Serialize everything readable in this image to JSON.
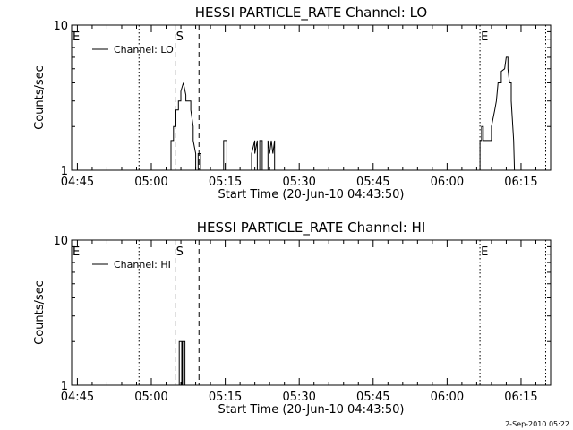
{
  "footer_timestamp": "2-Sep-2010 05:22",
  "chart_data": [
    {
      "type": "line",
      "title": "HESSI PARTICLE_RATE Channel: LO",
      "xlabel": "Start Time (20-Jun-10 04:43:50)",
      "ylabel": "Counts/sec",
      "y_scale": "log",
      "ylim": [
        1,
        10
      ],
      "y_tick_labels": [
        "1",
        "10"
      ],
      "xlim": [
        "04:43:50",
        "06:21:00"
      ],
      "x_tick_labels": [
        "04:45",
        "05:00",
        "05:15",
        "05:30",
        "05:45",
        "06:00",
        "06:15"
      ],
      "legend": {
        "entry": "Channel: LO",
        "position": "top-left"
      },
      "markers": [
        {
          "label": "E",
          "time": "04:43:50",
          "style": "dotted"
        },
        {
          "label": "",
          "time": "04:57:30",
          "style": "dotted"
        },
        {
          "label": "S",
          "time": "05:04:50",
          "style": "dashed"
        },
        {
          "label": "",
          "time": "05:09:40",
          "style": "dashed"
        },
        {
          "label": "E",
          "time": "06:06:40",
          "style": "dotted"
        },
        {
          "label": "",
          "time": "06:20:00",
          "style": "dotted"
        }
      ],
      "series": [
        {
          "name": "Channel: LO",
          "points": [
            [
              "05:04:00",
              1
            ],
            [
              "05:04:00",
              1.6
            ],
            [
              "05:04:30",
              1.6
            ],
            [
              "05:04:30",
              2.0
            ],
            [
              "05:05:00",
              2.0
            ],
            [
              "05:05:00",
              2.6
            ],
            [
              "05:05:30",
              2.6
            ],
            [
              "05:05:30",
              3.0
            ],
            [
              "05:06:00",
              3.0
            ],
            [
              "05:06:00",
              3.5
            ],
            [
              "05:06:30",
              4.0
            ],
            [
              "05:07:00",
              3.3
            ],
            [
              "05:07:00",
              3.0
            ],
            [
              "05:08:00",
              3.0
            ],
            [
              "05:08:00",
              2.6
            ],
            [
              "05:08:30",
              2.0
            ],
            [
              "05:08:30",
              1.6
            ],
            [
              "05:09:00",
              1.3
            ],
            [
              "05:09:00",
              1
            ],
            null,
            [
              "05:09:30",
              1
            ],
            [
              "05:09:30",
              1.3
            ],
            [
              "05:10:00",
              1.3
            ],
            [
              "05:10:00",
              1
            ],
            null,
            [
              "05:14:40",
              1
            ],
            [
              "05:14:40",
              1.6
            ],
            [
              "05:15:20",
              1.6
            ],
            [
              "05:15:20",
              1
            ],
            null,
            [
              "05:20:20",
              1
            ],
            [
              "05:20:20",
              1.3
            ],
            [
              "05:21:00",
              1.6
            ],
            [
              "05:21:00",
              1.3
            ],
            [
              "05:21:30",
              1.6
            ],
            [
              "05:21:30",
              1
            ],
            null,
            [
              "05:22:00",
              1
            ],
            [
              "05:22:00",
              1.6
            ],
            [
              "05:22:30",
              1.6
            ],
            [
              "05:22:30",
              1
            ],
            null,
            [
              "05:23:40",
              1
            ],
            [
              "05:23:40",
              1.6
            ],
            [
              "05:24:00",
              1.3
            ],
            [
              "05:24:20",
              1.6
            ],
            [
              "05:24:40",
              1.3
            ],
            [
              "05:25:00",
              1.6
            ],
            [
              "05:25:00",
              1
            ],
            null,
            [
              "06:06:40",
              1
            ],
            [
              "06:06:40",
              1.6
            ],
            [
              "06:07:00",
              1.6
            ],
            [
              "06:07:00",
              2.0
            ],
            [
              "06:07:20",
              2.0
            ],
            [
              "06:07:20",
              1.6
            ],
            [
              "06:09:00",
              1.6
            ],
            [
              "06:09:00",
              2.0
            ],
            [
              "06:09:40",
              2.6
            ],
            [
              "06:10:00",
              3.0
            ],
            [
              "06:10:20",
              4.0
            ],
            [
              "06:11:00",
              4.0
            ],
            [
              "06:11:00",
              4.8
            ],
            [
              "06:11:40",
              5.0
            ],
            [
              "06:12:00",
              6.0
            ],
            [
              "06:12:20",
              6.0
            ],
            [
              "06:12:20",
              5.0
            ],
            [
              "06:12:40",
              4.0
            ],
            [
              "06:13:00",
              4.0
            ],
            [
              "06:13:00",
              3.0
            ],
            [
              "06:13:30",
              1.6
            ],
            [
              "06:13:40",
              1
            ]
          ]
        }
      ]
    },
    {
      "type": "line",
      "title": "HESSI PARTICLE_RATE Channel: HI",
      "xlabel": "Start Time (20-Jun-10 04:43:50)",
      "ylabel": "Counts/sec",
      "y_scale": "log",
      "ylim": [
        1,
        10
      ],
      "y_tick_labels": [
        "1",
        "10"
      ],
      "xlim": [
        "04:43:50",
        "06:21:00"
      ],
      "x_tick_labels": [
        "04:45",
        "05:00",
        "05:15",
        "05:30",
        "05:45",
        "06:00",
        "06:15"
      ],
      "legend": {
        "entry": "Channel: HI",
        "position": "top-left"
      },
      "markers": [
        {
          "label": "E",
          "time": "04:43:50",
          "style": "dotted"
        },
        {
          "label": "",
          "time": "04:57:30",
          "style": "dotted"
        },
        {
          "label": "S",
          "time": "05:04:50",
          "style": "dashed"
        },
        {
          "label": "",
          "time": "05:09:40",
          "style": "dashed"
        },
        {
          "label": "E",
          "time": "06:06:40",
          "style": "dotted"
        },
        {
          "label": "",
          "time": "06:20:00",
          "style": "dotted"
        }
      ],
      "series": [
        {
          "name": "Channel: HI",
          "points": [
            [
              "05:05:40",
              1
            ],
            [
              "05:05:40",
              2.0
            ],
            [
              "05:06:10",
              2.0
            ],
            [
              "05:06:10",
              1
            ],
            null,
            [
              "05:06:20",
              1
            ],
            [
              "05:06:20",
              2.0
            ],
            [
              "05:06:50",
              2.0
            ],
            [
              "05:06:50",
              1
            ]
          ]
        }
      ]
    }
  ]
}
